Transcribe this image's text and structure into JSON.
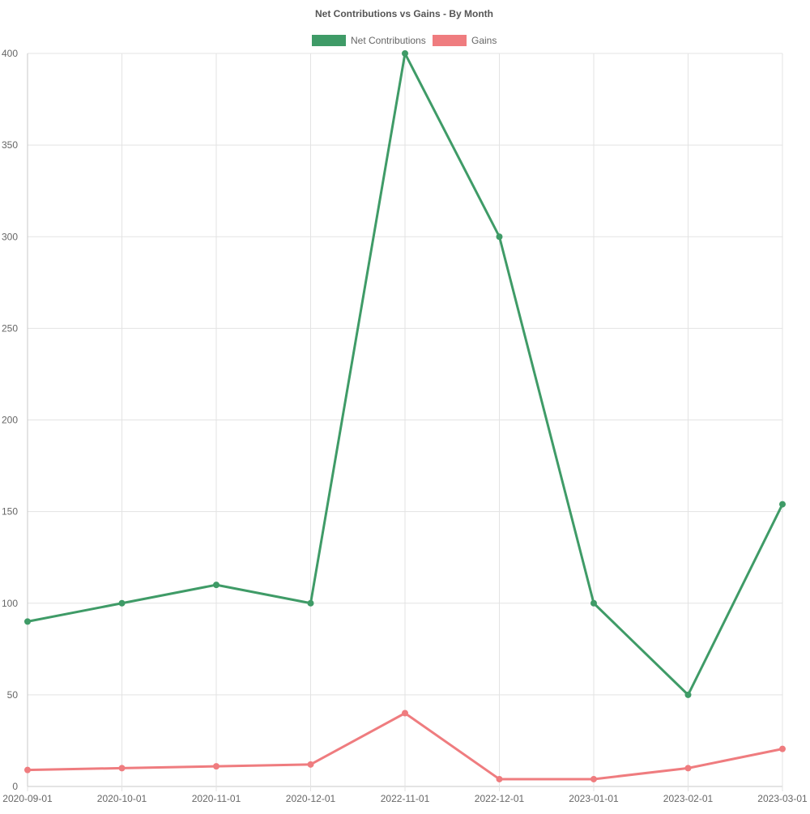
{
  "chart_data": {
    "type": "line",
    "title": "Net Contributions vs Gains - By Month",
    "categories": [
      "2020-09-01",
      "2020-10-01",
      "2020-11-01",
      "2020-12-01",
      "2022-11-01",
      "2022-12-01",
      "2023-01-01",
      "2023-02-01",
      "2023-03-01"
    ],
    "series": [
      {
        "name": "Net Contributions",
        "color": "#3f9b67",
        "values": [
          90,
          100,
          110,
          100,
          400,
          300,
          100,
          50,
          154
        ]
      },
      {
        "name": "Gains",
        "color": "#ef7c7f",
        "values": [
          9,
          10,
          11,
          12,
          40,
          4,
          4,
          10,
          20.5
        ]
      }
    ],
    "ylim": [
      0,
      400
    ],
    "yticks": [
      0,
      50,
      100,
      150,
      200,
      250,
      300,
      350,
      400
    ],
    "xlabel": "",
    "ylabel": "",
    "legend": "top-center",
    "grid": true
  },
  "colors": {
    "grid": "#e3e3e3",
    "axis": "#c8c8c8",
    "text": "#666666",
    "title": "#555555"
  }
}
